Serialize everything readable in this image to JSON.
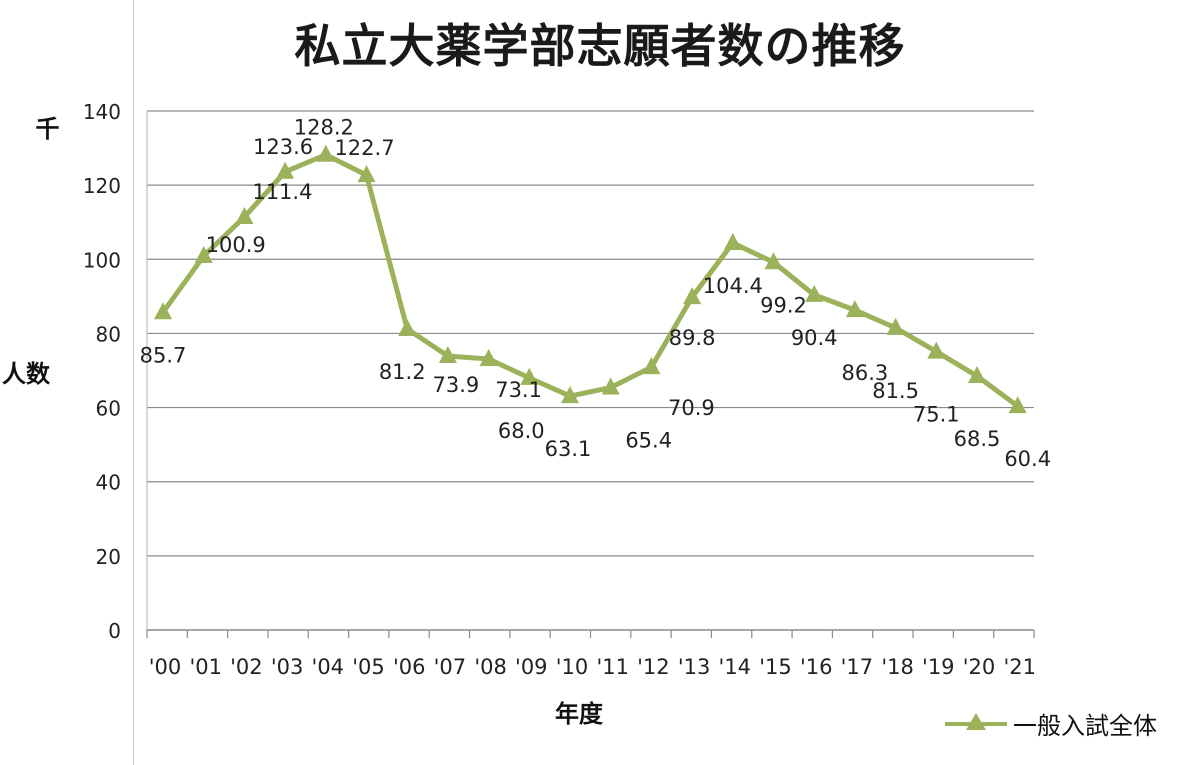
{
  "chart_data": {
    "type": "line",
    "title": "私立大薬学部志願者数の推移",
    "xlabel": "年度",
    "ylabel": "人数",
    "yunit": "千",
    "ylim": [
      0,
      140
    ],
    "yticks": [
      0,
      20,
      40,
      60,
      80,
      100,
      120,
      140
    ],
    "grid": true,
    "legend_position": "bottom-right",
    "categories": [
      "'00",
      "'01",
      "'02",
      "'03",
      "'04",
      "'05",
      "'06",
      "'07",
      "'08",
      "'09",
      "'10",
      "'11",
      "'12",
      "'13",
      "'14",
      "'15",
      "'16",
      "'17",
      "'18",
      "'19",
      "'20",
      "'21"
    ],
    "series": [
      {
        "name": "一般入試全体",
        "color": "#9bb15a",
        "marker": "triangle",
        "values": [
          85.7,
          100.9,
          111.4,
          123.6,
          128.2,
          122.7,
          81.2,
          73.9,
          73.1,
          68.0,
          63.1,
          65.4,
          70.9,
          89.8,
          104.4,
          99.2,
          90.4,
          86.3,
          81.5,
          75.1,
          68.5,
          60.4
        ],
        "data_labels": [
          "85.7",
          "100.9",
          "111.4",
          "123.6",
          "128.2",
          "122.7",
          "81.2",
          "73.9",
          "73.1",
          "68.0",
          "63.1",
          "65.4",
          "70.9",
          "89.8",
          "104.4",
          "99.2",
          "90.4",
          "86.3",
          "81.5",
          "75.1",
          "68.5",
          "60.4"
        ]
      }
    ]
  }
}
